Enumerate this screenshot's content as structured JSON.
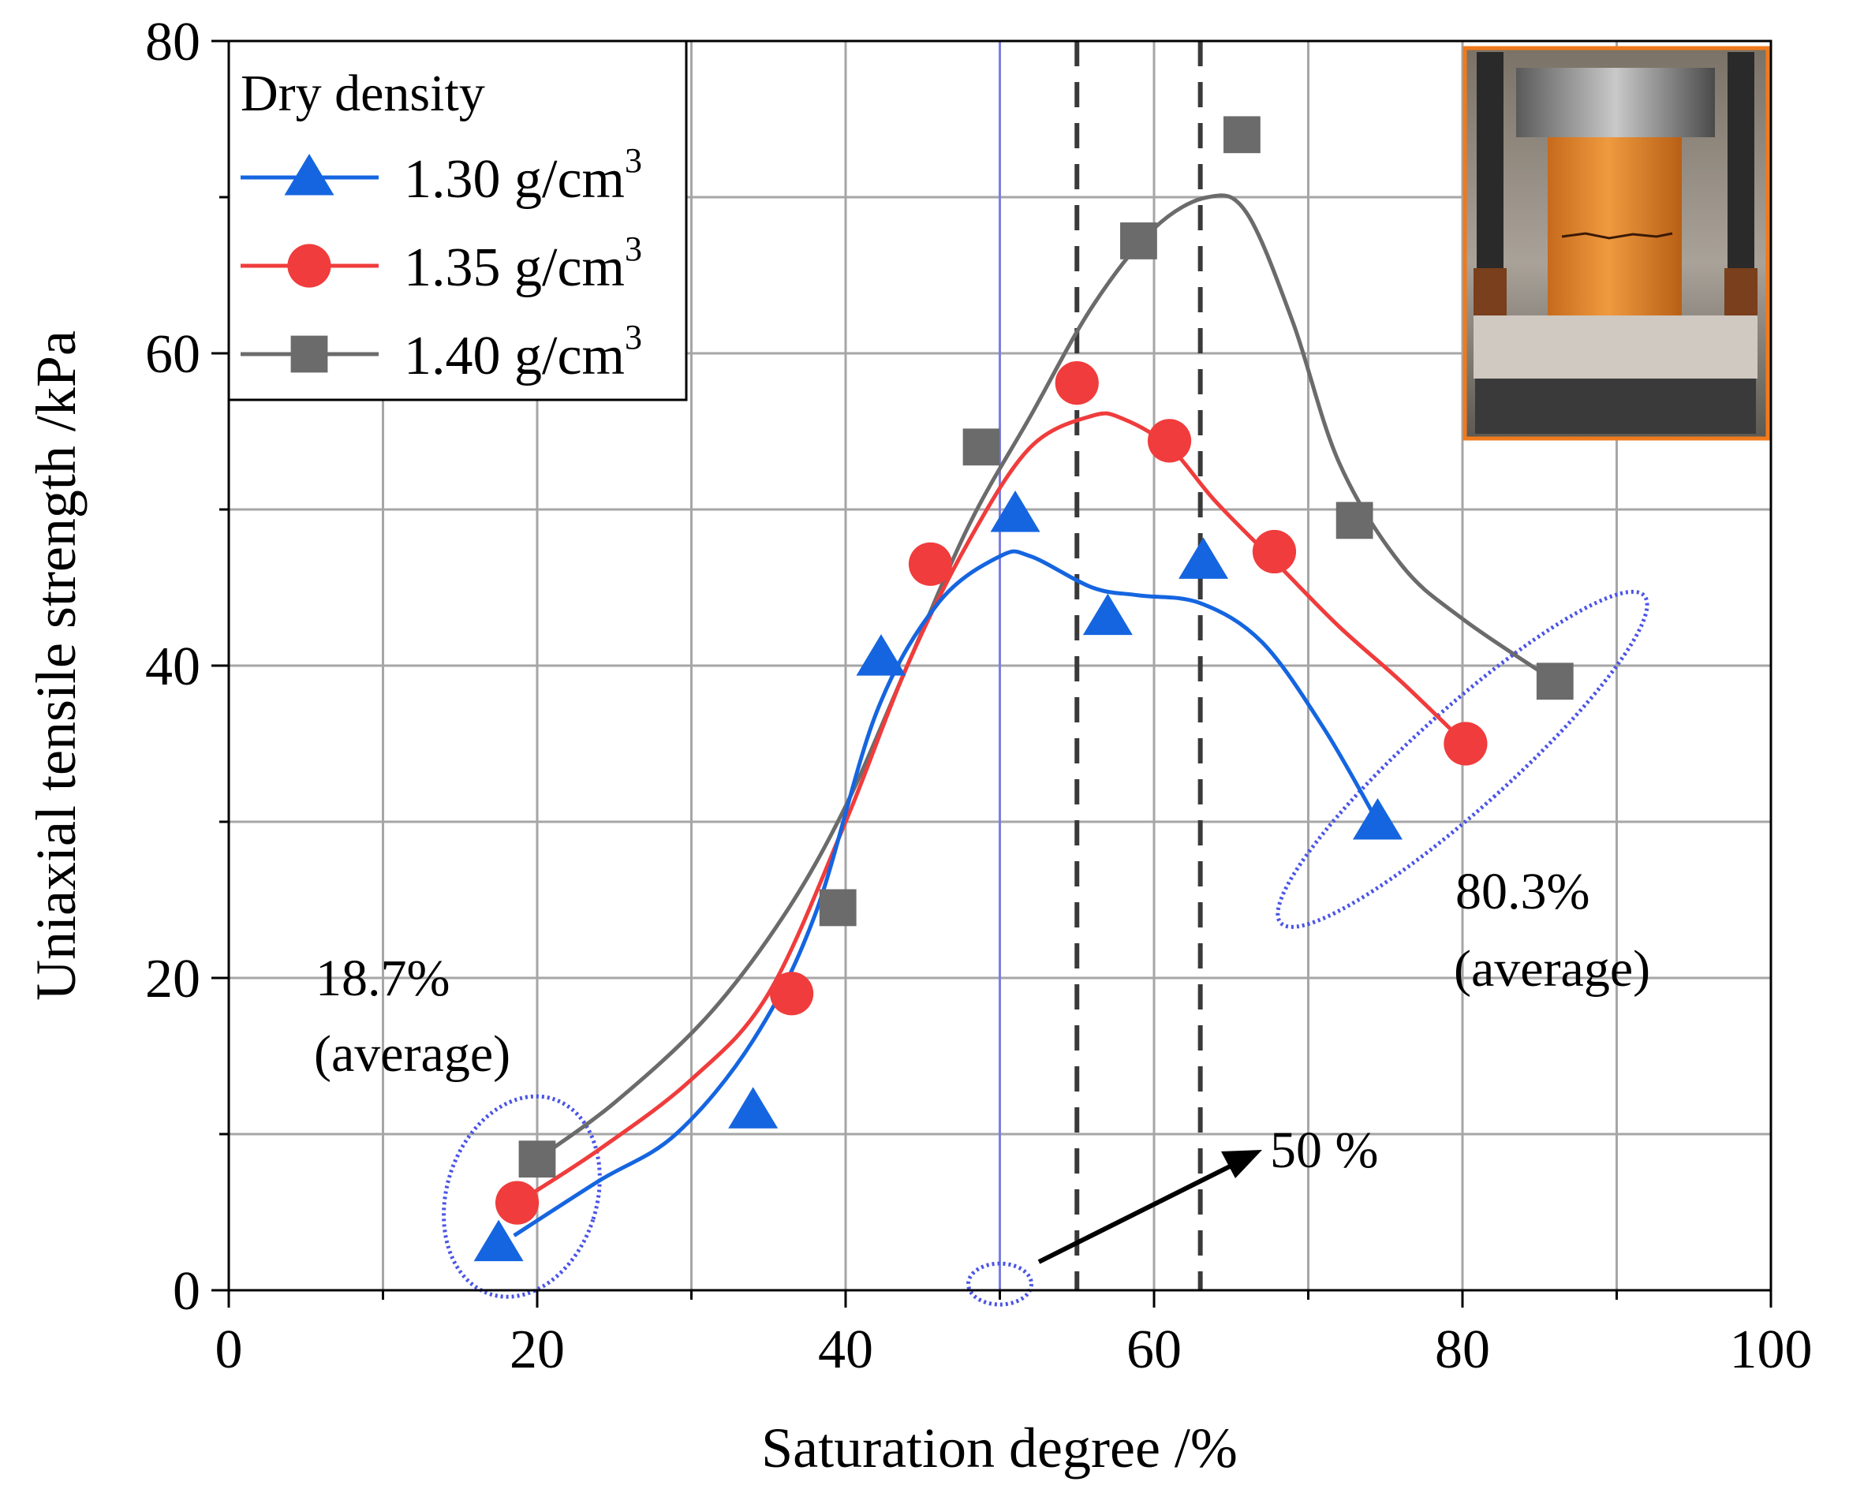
{
  "chart_data": {
    "type": "scatter",
    "xlabel": "Saturation degree /%",
    "ylabel": "Uniaxial tensile strength /kPa",
    "xlim": [
      0,
      100
    ],
    "ylim": [
      0,
      80
    ],
    "x_ticks": [
      0,
      20,
      40,
      60,
      80,
      100
    ],
    "y_ticks": [
      0,
      20,
      40,
      60,
      80
    ],
    "grid": true,
    "legend": {
      "title": "Dry density",
      "placement": "top-left",
      "entries": [
        "1.30 g/cm",
        "1.35 g/cm",
        "1.40 g/cm"
      ],
      "superscript": "3"
    },
    "series": [
      {
        "name": "1.30 g/cm3",
        "marker": "triangle",
        "color": "#1565e0",
        "points": [
          [
            17.5,
            3.0
          ],
          [
            34.0,
            11.5
          ],
          [
            42.3,
            40.5
          ],
          [
            51.0,
            49.7
          ],
          [
            57.0,
            43.1
          ],
          [
            63.2,
            46.7
          ],
          [
            74.5,
            30.0
          ]
        ],
        "curve": [
          [
            18.5,
            3.5
          ],
          [
            24,
            7
          ],
          [
            29,
            10
          ],
          [
            34,
            16
          ],
          [
            38,
            24
          ],
          [
            42,
            37
          ],
          [
            46,
            44
          ],
          [
            50,
            47
          ],
          [
            52,
            47
          ],
          [
            56,
            45
          ],
          [
            59,
            44.5
          ],
          [
            63,
            44
          ],
          [
            67,
            41.5
          ],
          [
            71,
            36
          ],
          [
            74.5,
            30
          ]
        ]
      },
      {
        "name": "1.35 g/cm3",
        "marker": "circle",
        "color": "#f03c3c",
        "points": [
          [
            18.7,
            5.6
          ],
          [
            36.5,
            19.0
          ],
          [
            45.5,
            46.5
          ],
          [
            55.0,
            58.1
          ],
          [
            61.0,
            54.4
          ],
          [
            67.8,
            47.3
          ],
          [
            80.2,
            35.0
          ]
        ],
        "curve": [
          [
            18.7,
            5.6
          ],
          [
            24,
            9
          ],
          [
            30,
            13.5
          ],
          [
            35,
            19
          ],
          [
            40,
            30
          ],
          [
            44,
            40
          ],
          [
            48,
            48
          ],
          [
            52,
            54
          ],
          [
            56,
            56
          ],
          [
            58,
            55.8
          ],
          [
            61,
            54
          ],
          [
            64,
            50.5
          ],
          [
            68,
            46.5
          ],
          [
            72,
            42.5
          ],
          [
            76,
            39
          ],
          [
            80.2,
            35
          ]
        ]
      },
      {
        "name": "1.40 g/cm3",
        "marker": "square",
        "color": "#6b6b6b",
        "points": [
          [
            20.0,
            8.4
          ],
          [
            39.5,
            24.5
          ],
          [
            48.8,
            54.0
          ],
          [
            59.0,
            67.2
          ],
          [
            65.7,
            74.0
          ],
          [
            73.0,
            49.3
          ],
          [
            86.0,
            39.0
          ]
        ],
        "curve": [
          [
            20,
            8.4
          ],
          [
            25,
            12
          ],
          [
            31,
            17.5
          ],
          [
            36,
            24
          ],
          [
            40,
            31
          ],
          [
            44,
            40
          ],
          [
            48,
            49
          ],
          [
            52,
            56
          ],
          [
            56,
            63
          ],
          [
            60,
            68
          ],
          [
            63.5,
            70
          ],
          [
            66,
            69
          ],
          [
            69,
            62
          ],
          [
            72,
            53
          ],
          [
            76,
            46.5
          ],
          [
            80,
            43
          ],
          [
            86,
            39
          ]
        ]
      }
    ],
    "annotations": {
      "left_pct": "18.7%",
      "left_avg": "(average)",
      "right_pct": "80.3%",
      "right_avg": "(average)",
      "arrow_label": "50 %"
    },
    "reference_lines": {
      "solid_x": 50,
      "dashed_x": [
        55,
        63
      ]
    },
    "inset": "photo of a cylindrical soil specimen in a loading frame",
    "colors": {
      "grid": "#a6a6a6",
      "dashed": "#3a3a3a",
      "solid_ref": "#7b7fe0",
      "ellipse": "#4a54e6",
      "inset_border": "#f07a1c"
    }
  }
}
